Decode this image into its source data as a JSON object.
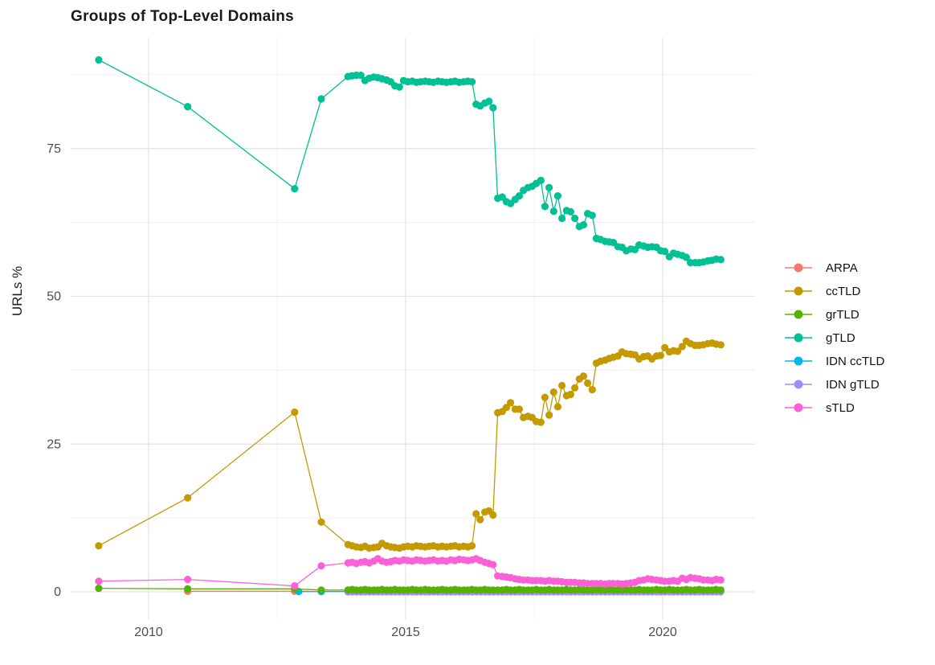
{
  "chart_data": {
    "type": "line",
    "title": "Groups of Top-Level Domains",
    "xlabel": "",
    "ylabel": "URLs %",
    "grid": true,
    "legend_position": "right",
    "x_axis": {
      "major_ticks": [
        2010,
        2015,
        2020
      ],
      "tick_labels": [
        "2010",
        "2015",
        "2020"
      ],
      "minor_gridlines": [
        2012.5,
        2017.5
      ],
      "range": [
        2008.5,
        2021.8
      ]
    },
    "y_axis": {
      "major_ticks": [
        0,
        25,
        50,
        75
      ],
      "tick_labels": [
        "0",
        "25",
        "50",
        "75"
      ],
      "minor_gridlines": [
        12.5,
        37.5,
        62.5,
        87.5
      ],
      "range": [
        -4.5,
        93.5
      ]
    },
    "x": [
      2009.03,
      2010.76,
      2012.84,
      2013.36,
      2013.88,
      2013.96,
      2014.04,
      2014.13,
      2014.21,
      2014.29,
      2014.38,
      2014.46,
      2014.54,
      2014.63,
      2014.71,
      2014.79,
      2014.88,
      2014.96,
      2015.04,
      2015.13,
      2015.21,
      2015.29,
      2015.38,
      2015.46,
      2015.54,
      2015.63,
      2015.71,
      2015.79,
      2015.88,
      2015.96,
      2016.04,
      2016.13,
      2016.21,
      2016.29,
      2016.37,
      2016.45,
      2016.54,
      2016.62,
      2016.7,
      2016.79,
      2016.88,
      2016.96,
      2017.04,
      2017.13,
      2017.21,
      2017.29,
      2017.38,
      2017.46,
      2017.54,
      2017.63,
      2017.71,
      2017.79,
      2017.88,
      2017.96,
      2018.04,
      2018.13,
      2018.21,
      2018.29,
      2018.38,
      2018.46,
      2018.54,
      2018.63,
      2018.71,
      2018.79,
      2018.88,
      2018.96,
      2019.04,
      2019.13,
      2019.21,
      2019.29,
      2019.38,
      2019.46,
      2019.54,
      2019.63,
      2019.71,
      2019.79,
      2019.88,
      2019.96,
      2020.04,
      2020.13,
      2020.21,
      2020.29,
      2020.38,
      2020.46,
      2020.54,
      2020.63,
      2020.71,
      2020.79,
      2020.88,
      2020.96,
      2021.04,
      2021.13
    ],
    "series": [
      {
        "name": "ARPA",
        "color": "#F8766D",
        "points_x": [
          2010.76,
          2012.84,
          2013.36
        ],
        "points_y": [
          0.1,
          0.1,
          0.05
        ]
      },
      {
        "name": "ccTLD",
        "color": "#C49A00",
        "x_ref": "shared",
        "values": [
          7.8,
          15.9,
          30.4,
          11.8,
          8.0,
          7.8,
          7.6,
          7.5,
          7.7,
          7.4,
          7.5,
          7.6,
          8.2,
          7.8,
          7.6,
          7.5,
          7.4,
          7.6,
          7.7,
          7.6,
          7.8,
          7.7,
          7.6,
          7.7,
          7.8,
          7.6,
          7.7,
          7.6,
          7.7,
          7.8,
          7.6,
          7.7,
          7.6,
          7.8,
          13.2,
          12.2,
          13.5,
          13.7,
          13.0,
          30.3,
          30.5,
          31.2,
          32.0,
          30.9,
          30.9,
          29.5,
          29.7,
          29.5,
          28.8,
          28.7,
          32.9,
          29.9,
          33.8,
          31.3,
          34.9,
          33.2,
          33.4,
          34.5,
          36.0,
          36.5,
          35.3,
          34.2,
          38.7,
          39.0,
          39.2,
          39.5,
          39.7,
          39.9,
          40.6,
          40.3,
          40.2,
          40.1,
          39.4,
          39.8,
          39.9,
          39.4,
          39.9,
          40.0,
          41.3,
          40.6,
          40.8,
          40.7,
          41.5,
          42.4,
          42.0,
          41.7,
          41.7,
          41.8,
          42.0,
          42.1,
          41.9,
          41.8
        ]
      },
      {
        "name": "grTLD",
        "color": "#53B400",
        "x_ref": "shared",
        "values": [
          0.6,
          0.5,
          0.5,
          0.3,
          0.3,
          0.4,
          0.3,
          0.3,
          0.4,
          0.3,
          0.3,
          0.3,
          0.4,
          0.3,
          0.3,
          0.4,
          0.3,
          0.3,
          0.3,
          0.4,
          0.3,
          0.3,
          0.4,
          0.3,
          0.3,
          0.3,
          0.4,
          0.3,
          0.3,
          0.4,
          0.3,
          0.3,
          0.3,
          0.4,
          0.3,
          0.3,
          0.4,
          0.3,
          0.3,
          0.3,
          0.3,
          0.4,
          0.3,
          0.3,
          0.4,
          0.3,
          0.3,
          0.3,
          0.4,
          0.3,
          0.3,
          0.4,
          0.3,
          0.3,
          0.3,
          0.4,
          0.3,
          0.3,
          0.4,
          0.3,
          0.3,
          0.3,
          0.4,
          0.3,
          0.3,
          0.4,
          0.3,
          0.3,
          0.3,
          0.4,
          0.3,
          0.3,
          0.4,
          0.3,
          0.3,
          0.3,
          0.4,
          0.3,
          0.3,
          0.4,
          0.3,
          0.3,
          0.3,
          0.4,
          0.3,
          0.3,
          0.4,
          0.3,
          0.3,
          0.3,
          0.4,
          0.3
        ]
      },
      {
        "name": "gTLD",
        "color": "#00C094",
        "x_ref": "shared",
        "values": [
          90.0,
          82.1,
          68.2,
          83.4,
          87.2,
          87.3,
          87.4,
          87.4,
          86.5,
          86.9,
          87.1,
          87.0,
          86.8,
          86.6,
          86.3,
          85.6,
          85.4,
          86.5,
          86.3,
          86.4,
          86.2,
          86.3,
          86.4,
          86.3,
          86.2,
          86.4,
          86.3,
          86.2,
          86.3,
          86.4,
          86.2,
          86.3,
          86.4,
          86.3,
          82.5,
          82.2,
          82.7,
          83.0,
          81.9,
          66.6,
          66.8,
          66.0,
          65.7,
          66.4,
          67.0,
          67.9,
          68.4,
          68.6,
          69.1,
          69.6,
          65.2,
          68.4,
          64.4,
          67.0,
          63.2,
          64.5,
          64.3,
          63.2,
          61.8,
          62.1,
          64.0,
          63.7,
          59.8,
          59.6,
          59.3,
          59.2,
          59.1,
          58.4,
          58.3,
          57.7,
          58.0,
          57.9,
          58.7,
          58.5,
          58.3,
          58.4,
          58.3,
          57.7,
          57.6,
          56.7,
          57.3,
          57.1,
          56.9,
          56.6,
          55.7,
          55.7,
          55.7,
          55.8,
          56.0,
          56.1,
          56.3,
          56.2
        ]
      },
      {
        "name": "IDN ccTLD",
        "color": "#00B6EB",
        "points_x": [
          2012.92,
          2013.36
        ],
        "points_y": [
          0.05,
          0.05
        ],
        "run": {
          "x0": 2013.88,
          "x_step": 0.0833,
          "n": 88,
          "value": 0.05
        }
      },
      {
        "name": "IDN gTLD",
        "color": "#A58AFF",
        "run": {
          "x0": 2013.88,
          "x_step": 0.0833,
          "n": 88,
          "value": 0.0
        }
      },
      {
        "name": "sTLD",
        "color": "#FB61D7",
        "x_ref": "shared",
        "values": [
          1.8,
          2.1,
          1.0,
          4.4,
          4.9,
          5.0,
          4.8,
          5.0,
          5.1,
          4.9,
          5.2,
          5.6,
          5.2,
          5.0,
          5.1,
          5.3,
          5.2,
          5.4,
          5.3,
          5.2,
          5.4,
          5.3,
          5.2,
          5.3,
          5.4,
          5.2,
          5.3,
          5.2,
          5.4,
          5.3,
          5.5,
          5.4,
          5.3,
          5.4,
          5.6,
          5.3,
          5.0,
          4.8,
          4.6,
          2.7,
          2.6,
          2.5,
          2.4,
          2.2,
          2.1,
          2.0,
          2.0,
          1.9,
          1.9,
          1.9,
          1.8,
          1.9,
          1.8,
          1.8,
          1.7,
          1.6,
          1.6,
          1.6,
          1.5,
          1.5,
          1.4,
          1.4,
          1.4,
          1.4,
          1.3,
          1.4,
          1.4,
          1.4,
          1.3,
          1.4,
          1.5,
          1.6,
          1.9,
          2.0,
          2.2,
          2.1,
          2.0,
          1.9,
          1.8,
          1.8,
          1.9,
          1.8,
          2.3,
          2.1,
          2.4,
          2.3,
          2.2,
          2.0,
          2.0,
          1.9,
          2.1,
          2.0
        ]
      }
    ]
  },
  "colors": {
    "grid_major": "#e3e3e3",
    "grid_minor": "#f0f0f0",
    "axis_text": "#4d4d4d",
    "title_text": "#1a1a1a"
  }
}
